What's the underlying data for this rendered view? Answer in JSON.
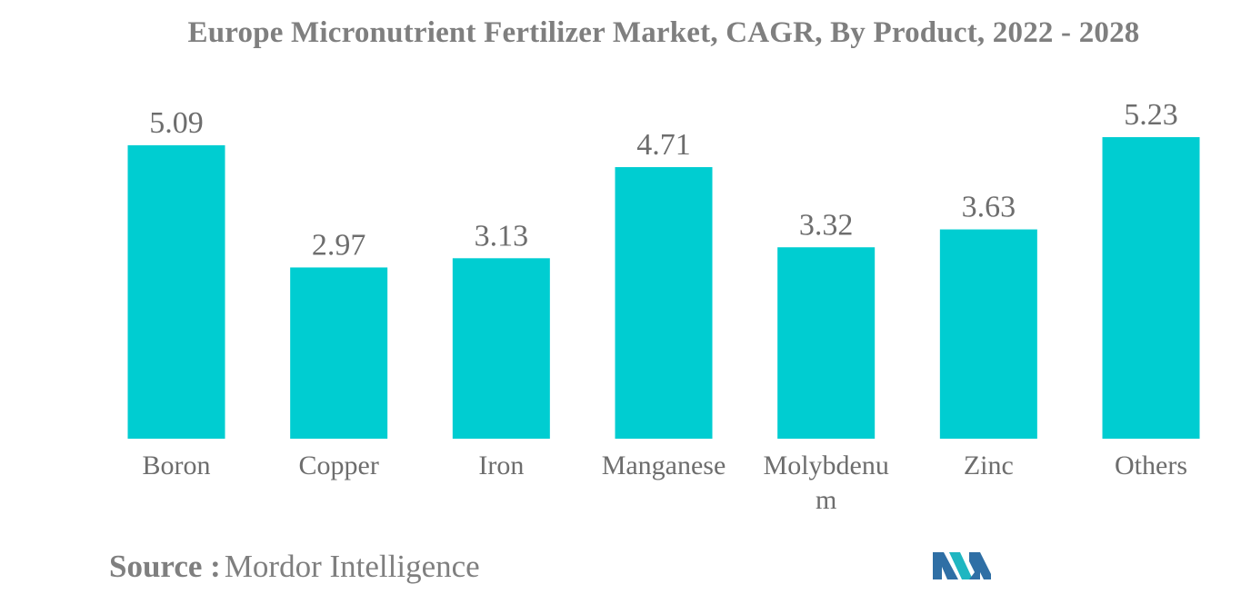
{
  "chart_data": {
    "type": "bar",
    "title": "Europe Micronutrient Fertilizer Market, CAGR, By Product, 2022 - 2028",
    "categories": [
      "Boron",
      "Copper",
      "Iron",
      "Manganese",
      "Molybdenum",
      "Zinc",
      "Others"
    ],
    "category_label_lines": [
      [
        "Boron"
      ],
      [
        "Copper"
      ],
      [
        "Iron"
      ],
      [
        "Manganese"
      ],
      [
        "Molybdenu",
        "m"
      ],
      [
        "Zinc"
      ],
      [
        "Others"
      ]
    ],
    "values": [
      5.09,
      2.97,
      3.13,
      4.71,
      3.32,
      3.63,
      5.23
    ],
    "value_labels": [
      "5.09",
      "2.97",
      "3.13",
      "4.71",
      "3.32",
      "3.63",
      "5.23"
    ],
    "xlabel": "",
    "ylabel": "",
    "ylim": [
      0,
      5.23
    ],
    "grid": false,
    "legend": "none",
    "bar_color": "#00cdd1",
    "label_color": "#6d6d6d"
  },
  "source": {
    "label": "Source :",
    "name": "Mordor Intelligence"
  },
  "logo": {
    "icon": "mordor-intelligence-logo",
    "colors": [
      "#2f6fa5",
      "#1fb6c1"
    ]
  }
}
